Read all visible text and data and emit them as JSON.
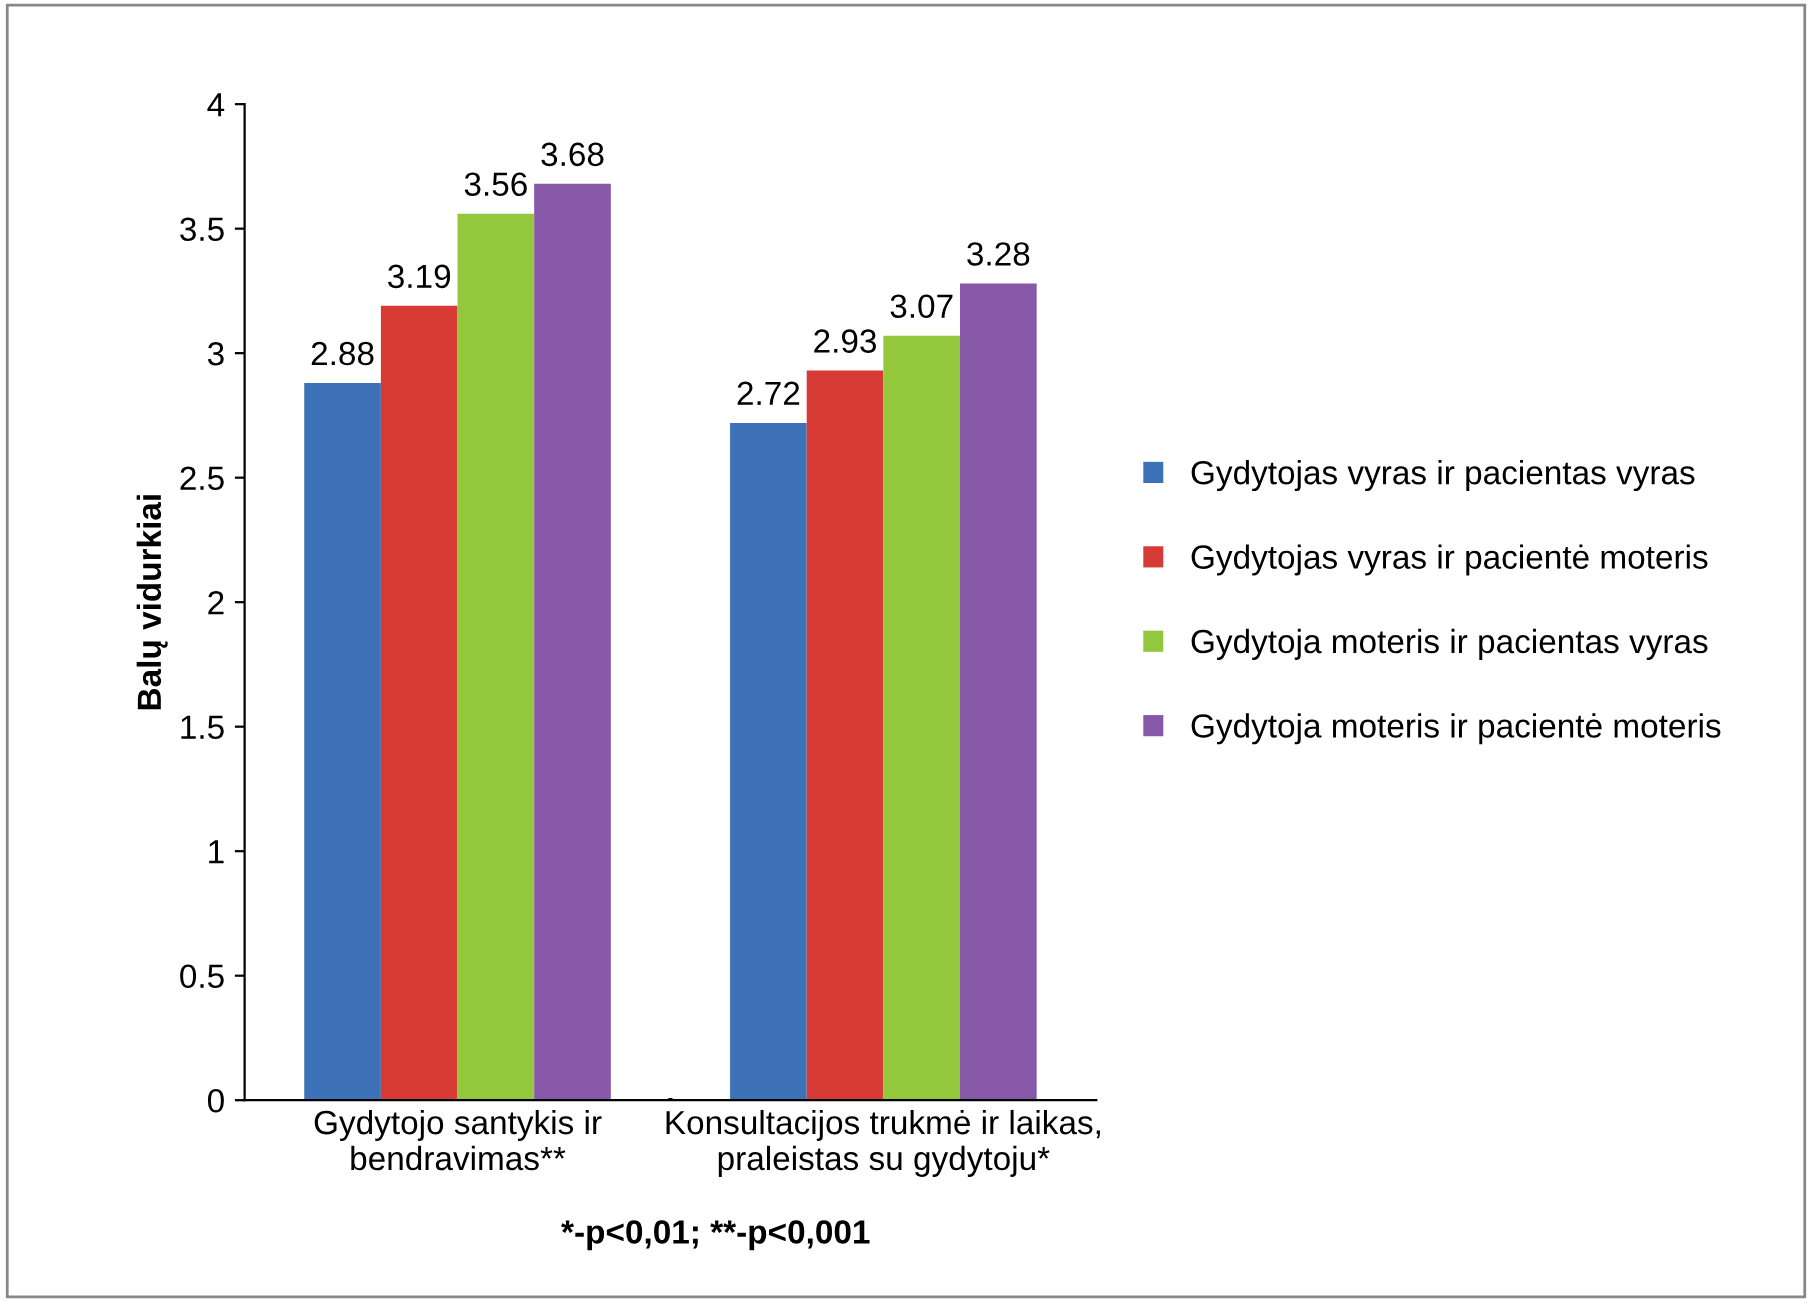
{
  "chart_data": {
    "type": "bar",
    "ylabel": "Balų vidurkiai",
    "categories": [
      "Gydytojo santykis ir\nbendravimas**",
      "Konsultacijos trukmė ir laikas,\npraleistas su gydytoju*"
    ],
    "series": [
      {
        "name": "Gydytojas vyras ir pacientas vyras",
        "color": "#3d72b8",
        "values": [
          2.88,
          2.72
        ]
      },
      {
        "name": "Gydytojas vyras ir pacientė moteris",
        "color": "#d63c35",
        "values": [
          3.19,
          2.93
        ]
      },
      {
        "name": "Gydytoja moteris ir pacientas vyras",
        "color": "#93c83c",
        "values": [
          3.56,
          3.07
        ]
      },
      {
        "name": "Gydytoja moteris ir pacientė moteris",
        "color": "#8758a8",
        "values": [
          3.68,
          3.28
        ]
      }
    ],
    "ylim": [
      0,
      4
    ],
    "yticks": [
      0,
      0.5,
      1,
      1.5,
      2,
      2.5,
      3,
      3.5,
      4
    ],
    "data_labels": true,
    "grid": false,
    "legend": "right",
    "annotations": [
      "*-p<0,01; **-p<0,001"
    ]
  }
}
